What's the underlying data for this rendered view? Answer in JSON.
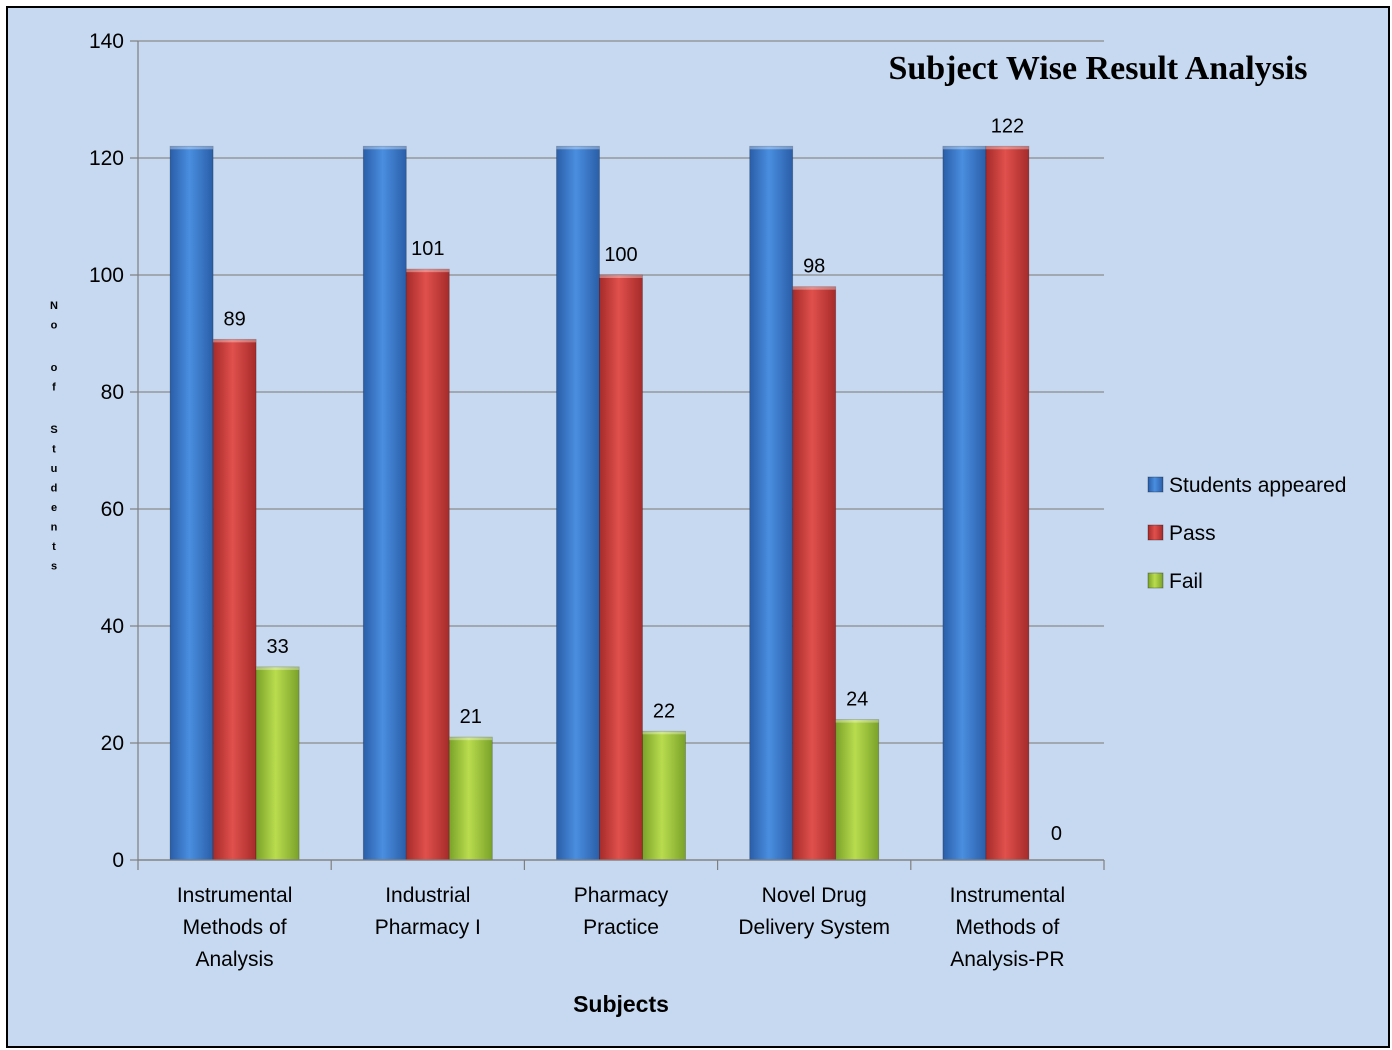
{
  "chart_data": {
    "type": "bar",
    "title": "Subject Wise Result Analysis",
    "xlabel": "Subjects",
    "ylabel": "No of Students",
    "ylim": [
      0,
      140
    ],
    "yticks": [
      0,
      20,
      40,
      60,
      80,
      100,
      120,
      140
    ],
    "grid": true,
    "legend_position": "right",
    "categories": [
      [
        "Instrumental",
        "Methods of",
        "Analysis"
      ],
      [
        "Industrial",
        "Pharmacy I"
      ],
      [
        "Pharmacy",
        "Practice"
      ],
      [
        "Novel Drug",
        "Delivery System"
      ],
      [
        "Instrumental",
        "Methods of",
        "Analysis-PR"
      ]
    ],
    "series": [
      {
        "name": "Students appeared",
        "values": [
          122,
          122,
          122,
          122,
          122
        ],
        "color": "#3a78c9",
        "labels": [
          "",
          "",
          "",
          "",
          ""
        ]
      },
      {
        "name": "Pass",
        "values": [
          89,
          101,
          100,
          98,
          122
        ],
        "color": "#c93a38",
        "labels": [
          "89",
          "101",
          "100",
          "98",
          "122"
        ]
      },
      {
        "name": "Fail",
        "values": [
          33,
          21,
          22,
          24,
          0
        ],
        "color": "#9cc43a",
        "labels": [
          "33",
          "21",
          "22",
          "24",
          "0"
        ]
      }
    ]
  },
  "colors": {
    "background": "#c6d9f0",
    "gridline": "#8c8c8c"
  }
}
